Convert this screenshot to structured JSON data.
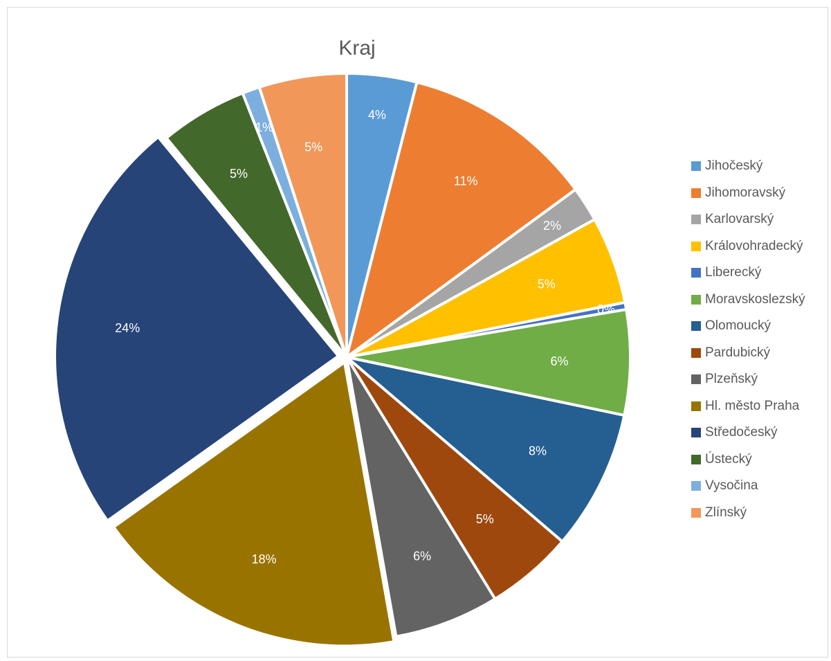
{
  "chart_data": {
    "type": "pie",
    "title": "Kraj",
    "legend_position": "right",
    "slices": [
      {
        "name": "Jihočeský",
        "value": 4,
        "label": "4%",
        "color": "#5b9bd5"
      },
      {
        "name": "Jihomoravský",
        "value": 11,
        "label": "11%",
        "color": "#ed7d31"
      },
      {
        "name": "Karlovarský",
        "value": 2,
        "label": "2%",
        "color": "#a5a5a5"
      },
      {
        "name": "Královohradecký",
        "value": 5,
        "label": "5%",
        "color": "#ffc000"
      },
      {
        "name": "Liberecký",
        "value": 0,
        "label": "0%",
        "color": "#4472c4"
      },
      {
        "name": "Moravskoslezský",
        "value": 6,
        "label": "6%",
        "color": "#70ad47"
      },
      {
        "name": "Olomoucký",
        "value": 8,
        "label": "8%",
        "color": "#255e91"
      },
      {
        "name": "Pardubický",
        "value": 5,
        "label": "5%",
        "color": "#9e480e"
      },
      {
        "name": "Plzeňský",
        "value": 6,
        "label": "6%",
        "color": "#636363"
      },
      {
        "name": "Hl. město Praha",
        "value": 18,
        "label": "18%",
        "color": "#997300"
      },
      {
        "name": "Středočeský",
        "value": 24,
        "label": "24%",
        "color": "#264478"
      },
      {
        "name": "Ústecký",
        "value": 5,
        "label": "5%",
        "color": "#43682b"
      },
      {
        "name": "Vysočina",
        "value": 1,
        "label": "1%",
        "color": "#7cafdd"
      },
      {
        "name": "Zlínský",
        "value": 5,
        "label": "5%",
        "color": "#f1975a"
      }
    ]
  }
}
